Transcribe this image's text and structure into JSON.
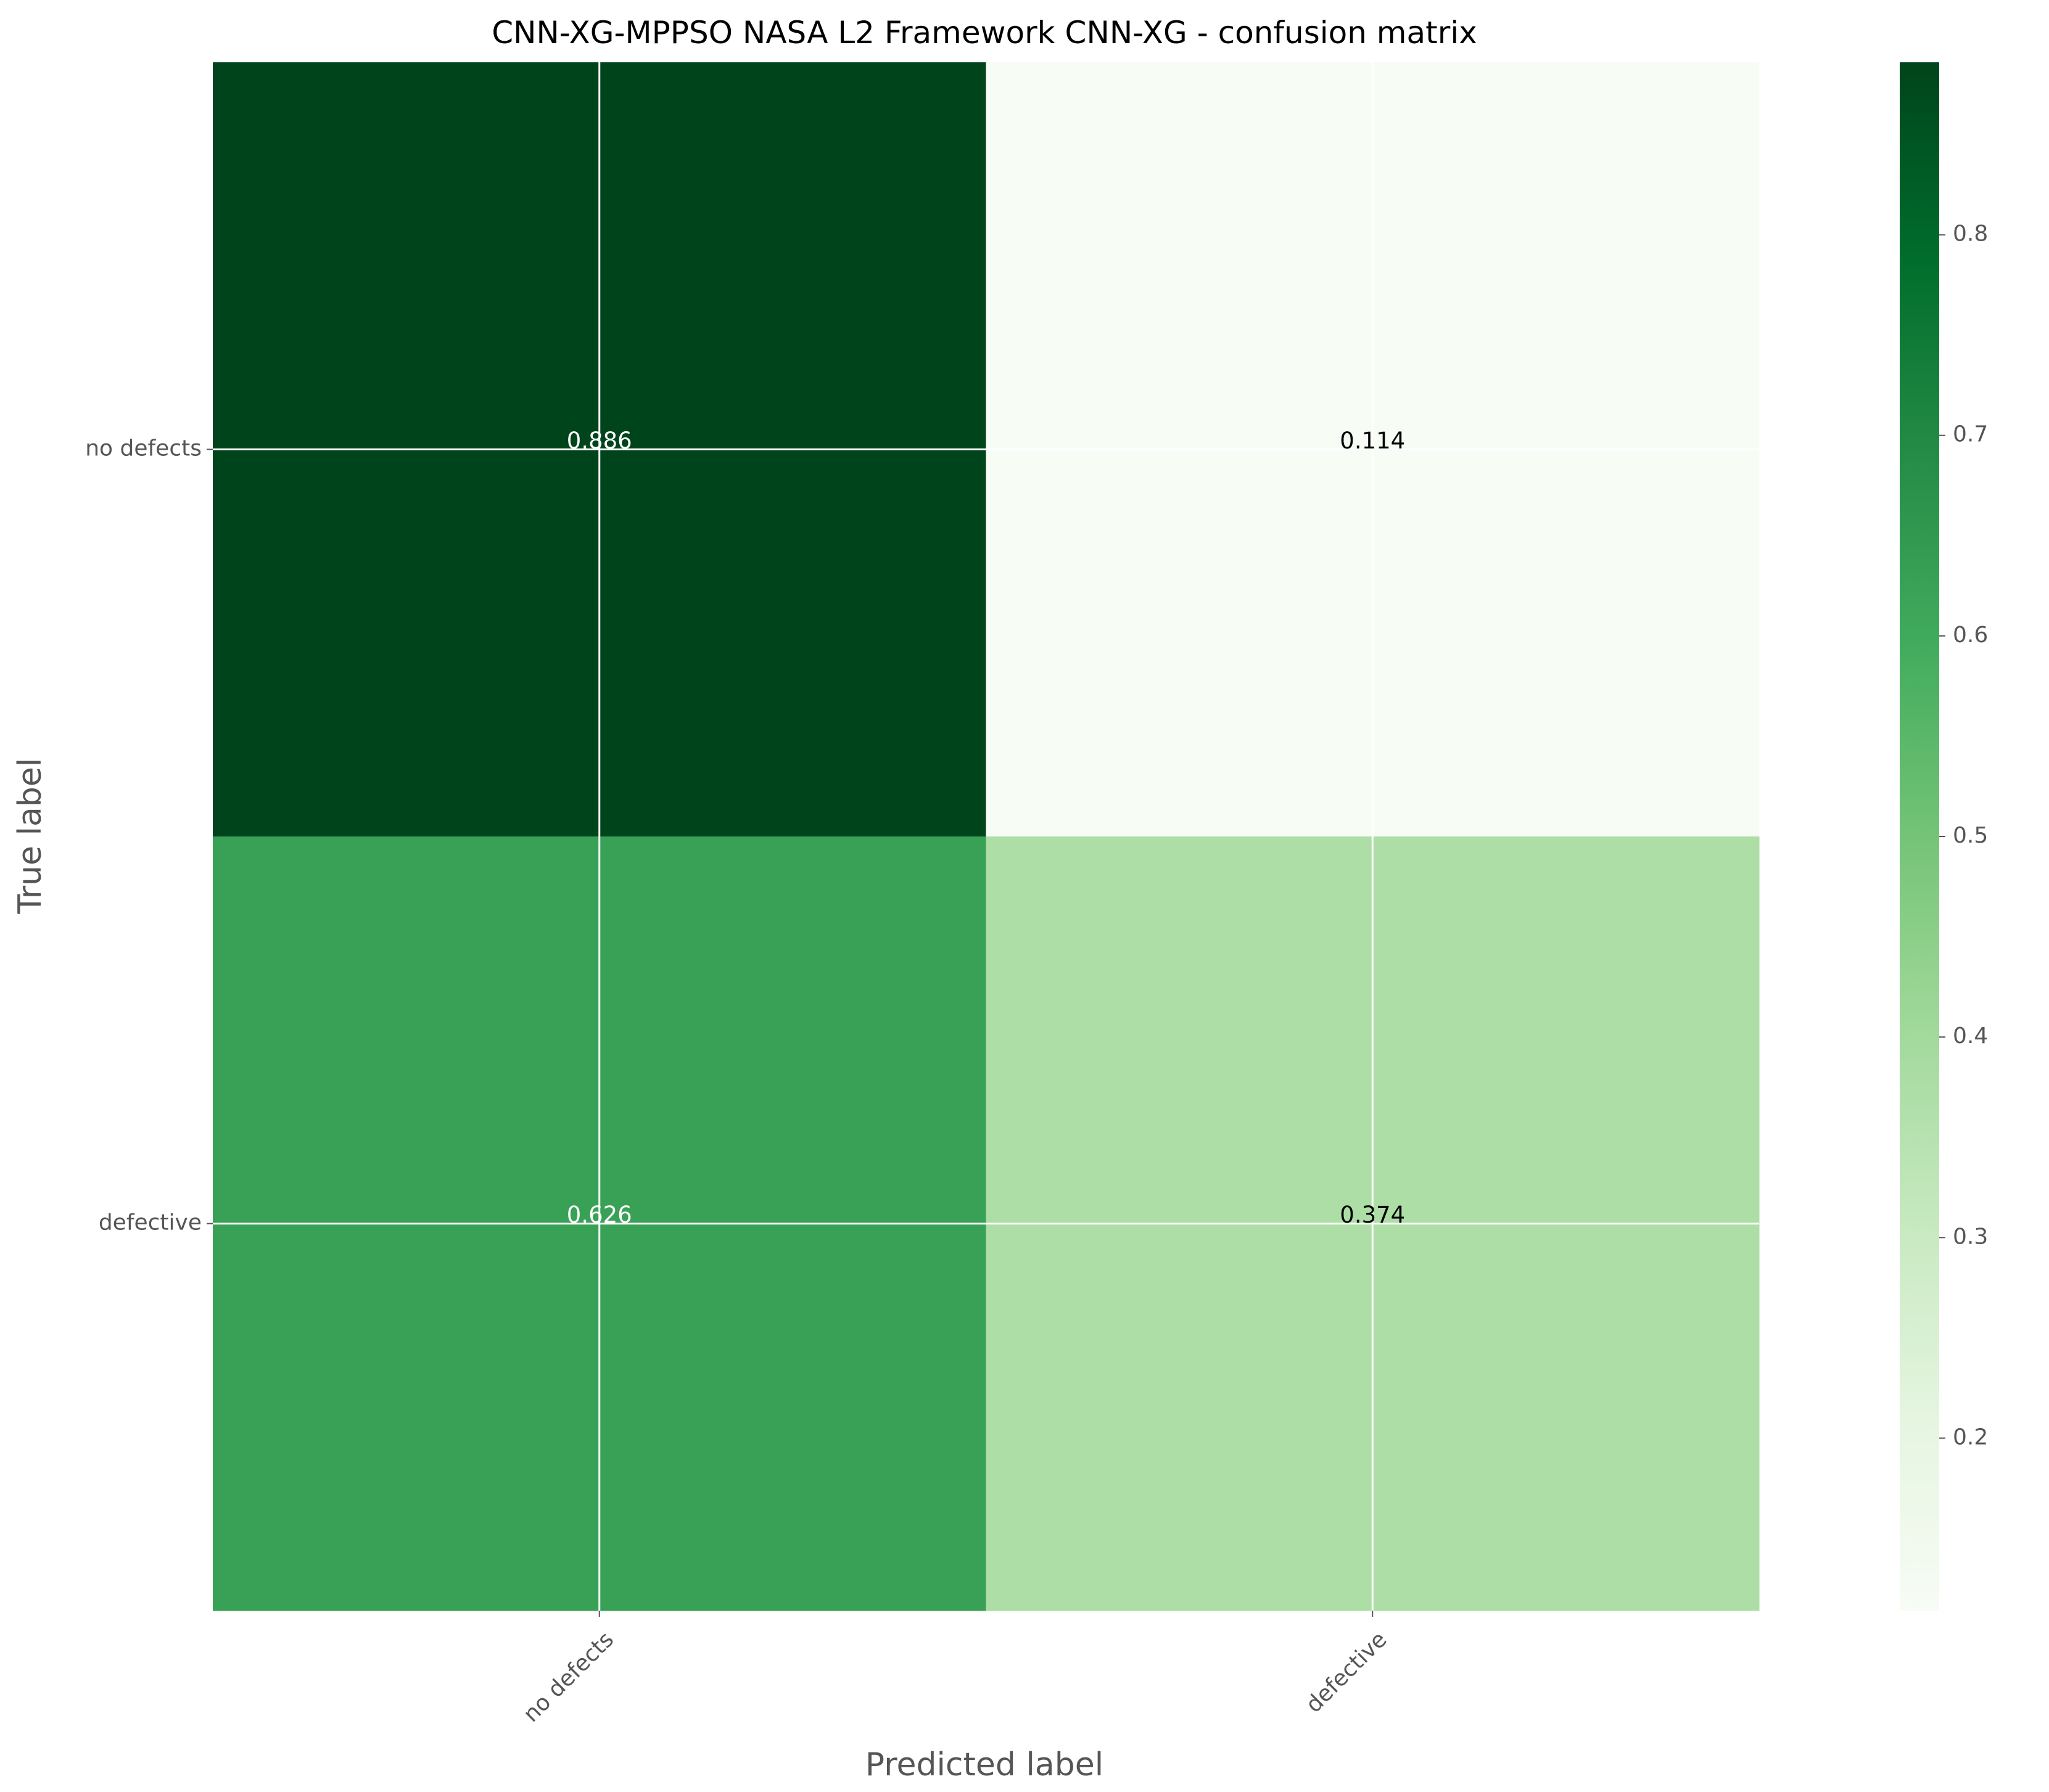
{
  "chart_data": {
    "type": "heatmap",
    "title": "CNN-XG-MPPSO NASA L2 Framework CNN-XG -  confusion matrix",
    "xlabel": "Predicted label",
    "ylabel": "True label",
    "x_categories": [
      "no defects",
      "defective"
    ],
    "y_categories": [
      "no defects",
      "defective"
    ],
    "values": [
      [
        0.886,
        0.114
      ],
      [
        0.626,
        0.374
      ]
    ],
    "value_labels": [
      [
        "0.886",
        "0.114"
      ],
      [
        "0.626",
        "0.374"
      ]
    ],
    "colorbar": {
      "colormap": "Greens",
      "range": [
        0.114,
        0.886
      ],
      "ticks": [
        0.2,
        0.3,
        0.4,
        0.5,
        0.6,
        0.7,
        0.8
      ],
      "tick_labels": [
        "0.2",
        "0.3",
        "0.4",
        "0.5",
        "0.6",
        "0.7",
        "0.8"
      ]
    },
    "grid": true
  },
  "colors": {
    "grid": "#ffffff",
    "tick_text": "#555555",
    "axis_label_text": "#555555",
    "title_text": "#000000",
    "cell_text_dark_bg": "#ffffff",
    "cell_text_light_bg": "#000000",
    "colormap_stops": [
      "#f7fcf5",
      "#e5f5e0",
      "#c7e9c0",
      "#a1d99b",
      "#74c476",
      "#41ab5d",
      "#238b45",
      "#006d2c",
      "#00441b"
    ]
  }
}
